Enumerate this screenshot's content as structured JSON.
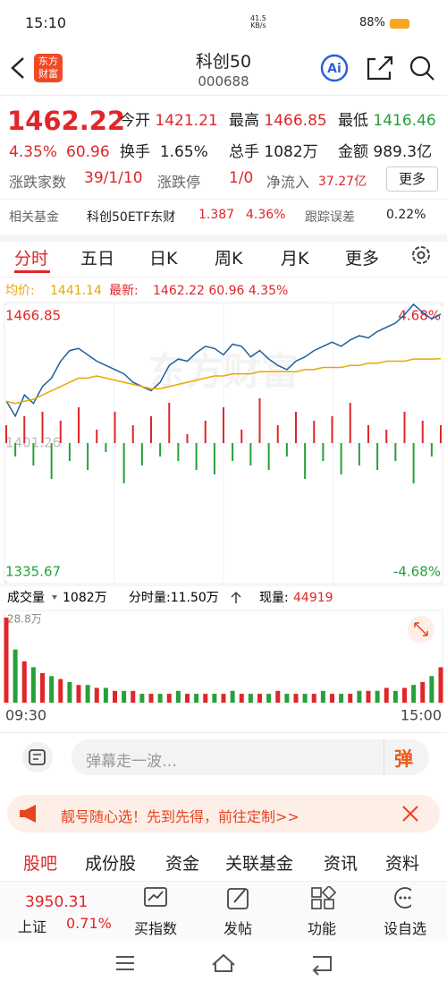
{
  "status_bar": {
    "time": "15:10",
    "net_speed": "41.5",
    "net_unit": "KB/s",
    "battery": "88%"
  },
  "header": {
    "logo": [
      "东方",
      "财富"
    ],
    "title": "科创50",
    "code": "000688"
  },
  "quote": {
    "price": "1462.22",
    "change_pct": "4.35%",
    "change": "60.96",
    "stats": [
      [
        "今开",
        "1421.21"
      ],
      [
        "最高",
        "1466.85"
      ],
      [
        "最低",
        "1416.46"
      ]
    ],
    "row2": [
      [
        "换手",
        "1.65%"
      ],
      [
        "总手",
        "1082万"
      ],
      [
        "金额",
        "989.3亿"
      ]
    ],
    "breadth_label": "涨跌家数",
    "breadth": "39/1/10",
    "limit_label": "涨跌停",
    "limit": "1/0",
    "inflow_label": "净流入",
    "inflow": "37.27亿",
    "more": "更多"
  },
  "fund": {
    "label": "相关基金",
    "name": "科创50ETF东财",
    "price": "1.387",
    "pct": "4.36%",
    "err_label": "跟踪误差",
    "err": "0.22%"
  },
  "tabs": [
    "分时",
    "五日",
    "日K",
    "周K",
    "月K",
    "更多"
  ],
  "chart_data": [
    {
      "type": "line",
      "watermark": "东方财富",
      "legend_values": [
        "1441.14",
        "1462.22 60.96 4.35%"
      ],
      "xlim": [
        0,
        48
      ],
      "ylim": [
        1335.67,
        1466.85
      ],
      "yticks": [
        1466.85,
        1401.26,
        1335.67
      ],
      "y2lim": [
        -4.68,
        4.68
      ],
      "y2ticks": [
        {
          "value": 4.68,
          "label": "4.68%"
        },
        {
          "value": -4.68,
          "label": "-4.68%"
        }
      ],
      "series": [
        {
          "name": "最新:",
          "color": "#1f5f9e",
          "values": [
            1421.2,
            1414,
            1424,
            1420,
            1428,
            1432,
            1440,
            1445,
            1446,
            1443,
            1440,
            1438,
            1436,
            1434,
            1430,
            1428,
            1426,
            1430,
            1438,
            1441,
            1440,
            1444,
            1447,
            1446,
            1443,
            1448,
            1447,
            1442,
            1445,
            1441,
            1438,
            1436,
            1440,
            1442,
            1445,
            1447,
            1449,
            1447,
            1450,
            1452,
            1451,
            1454,
            1456,
            1458,
            1462,
            1466.85,
            1463,
            1460,
            1462.22
          ]
        },
        {
          "name": "均价:",
          "color": "#e8a800",
          "values": [
            1421,
            1420,
            1421,
            1422,
            1424,
            1426,
            1428,
            1430,
            1432,
            1432,
            1433,
            1432,
            1431,
            1430,
            1429,
            1428,
            1427,
            1427,
            1428,
            1429,
            1430,
            1431,
            1432,
            1433,
            1433,
            1434,
            1434,
            1434,
            1435,
            1435,
            1435,
            1435,
            1435,
            1436,
            1436,
            1437,
            1437,
            1437,
            1438,
            1438,
            1439,
            1439,
            1440,
            1440,
            1440,
            1441,
            1441,
            1441,
            1441.14
          ]
        }
      ]
    },
    {
      "type": "bar",
      "xlim": [
        0,
        48
      ],
      "ylim": [
        -60,
        60
      ],
      "colors": {
        "positive": "#e0262a",
        "negative": "#26a03a"
      },
      "values": [
        20,
        -15,
        30,
        -25,
        35,
        -40,
        25,
        -20,
        40,
        -30,
        15,
        -10,
        35,
        -45,
        20,
        -25,
        30,
        -15,
        45,
        -20,
        10,
        -30,
        25,
        -35,
        40,
        -20,
        15,
        -25,
        50,
        -30,
        20,
        -15,
        35,
        -40,
        25,
        -20,
        30,
        -35,
        45,
        -25,
        20,
        -30,
        15,
        -20,
        35,
        -45,
        25,
        -15,
        20
      ]
    },
    {
      "type": "bar",
      "header": {
        "volume_label": "成交量",
        "volume": "1082万",
        "minute_volume": "分时量:11.50万",
        "current_label": "现量:",
        "current": "44919"
      },
      "xlim": [
        0,
        48
      ],
      "xticks": [
        {
          "value": 0,
          "label": "09:30"
        },
        {
          "value": 48,
          "label": "15:00"
        }
      ],
      "ylim": [
        0,
        28.8
      ],
      "yticks": [
        {
          "value": 28.8,
          "label": "28.8万"
        }
      ],
      "series": [
        {
          "color": "#e0262a",
          "values": [
            28.8,
            null,
            14,
            null,
            10,
            null,
            8,
            null,
            6,
            null,
            5,
            null,
            4,
            null,
            4,
            null,
            3,
            null,
            3,
            null,
            3,
            null,
            3,
            null,
            3,
            null,
            3,
            null,
            3,
            null,
            4,
            null,
            3,
            null,
            3,
            null,
            3,
            null,
            3,
            null,
            4,
            null,
            5,
            null,
            5,
            null,
            7,
            null,
            12
          ]
        },
        {
          "color": "#26a03a",
          "values": [
            null,
            18,
            null,
            12,
            null,
            9,
            null,
            7,
            null,
            6,
            null,
            5,
            null,
            4,
            null,
            3,
            null,
            3,
            null,
            4,
            null,
            3,
            null,
            3,
            null,
            4,
            null,
            3,
            null,
            3,
            null,
            3,
            null,
            3,
            null,
            4,
            null,
            3,
            null,
            4,
            null,
            4,
            null,
            4,
            null,
            6,
            null,
            9,
            null
          ]
        }
      ]
    }
  ],
  "danmu": {
    "placeholder": "弹幕走一波…",
    "button": "弹"
  },
  "banner": "靓号随心选！先到先得，前往定制>>",
  "section_tabs": [
    "股吧",
    "成份股",
    "资金",
    "关联基金",
    "资讯",
    "资料"
  ],
  "bottom": {
    "index_value": "3950.31",
    "index_name": "上证",
    "index_pct": "0.71%",
    "actions": [
      "买指数",
      "发帖",
      "功能",
      "设自选"
    ]
  }
}
